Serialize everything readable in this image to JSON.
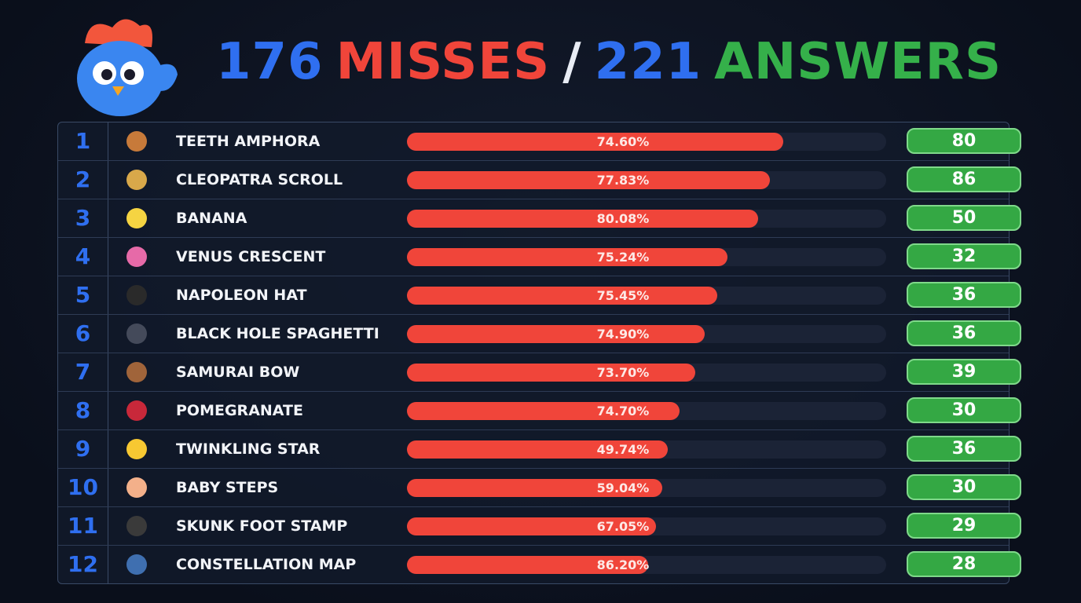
{
  "header": {
    "misses_count": 176,
    "misses_label": "MISSES",
    "separator": "/",
    "answers_count": 221,
    "answers_label": "ANSWERS"
  },
  "rows": [
    {
      "rank": 1,
      "name": "TEETH AMPHORA",
      "percent": "74.60%",
      "count": 80
    },
    {
      "rank": 2,
      "name": "CLEOPATRA SCROLL",
      "percent": "77.83%",
      "count": 86
    },
    {
      "rank": 3,
      "name": "BANANA",
      "percent": "80.08%",
      "count": 50
    },
    {
      "rank": 4,
      "name": "VENUS CRESCENT",
      "percent": "75.24%",
      "count": 32
    },
    {
      "rank": 5,
      "name": "NAPOLEON HAT",
      "percent": "75.45%",
      "count": 36
    },
    {
      "rank": 6,
      "name": "BLACK HOLE SPAGHETTI",
      "percent": "74.90%",
      "count": 36
    },
    {
      "rank": 7,
      "name": "SAMURAI BOW",
      "percent": "73.70%",
      "count": 39
    },
    {
      "rank": 8,
      "name": "POMEGRANATE",
      "percent": "74.70%",
      "count": 30
    },
    {
      "rank": 9,
      "name": "TWINKLING STAR",
      "percent": "49.74%",
      "count": 36
    },
    {
      "rank": 10,
      "name": "BABY STEPS",
      "percent": "59.04%",
      "count": 30
    },
    {
      "rank": 11,
      "name": "SKUNK FOOT STAMP",
      "percent": "67.05%",
      "count": 29
    },
    {
      "rank": 12,
      "name": "CONSTELLATION MAP",
      "percent": "86.20%",
      "count": 28
    }
  ]
}
